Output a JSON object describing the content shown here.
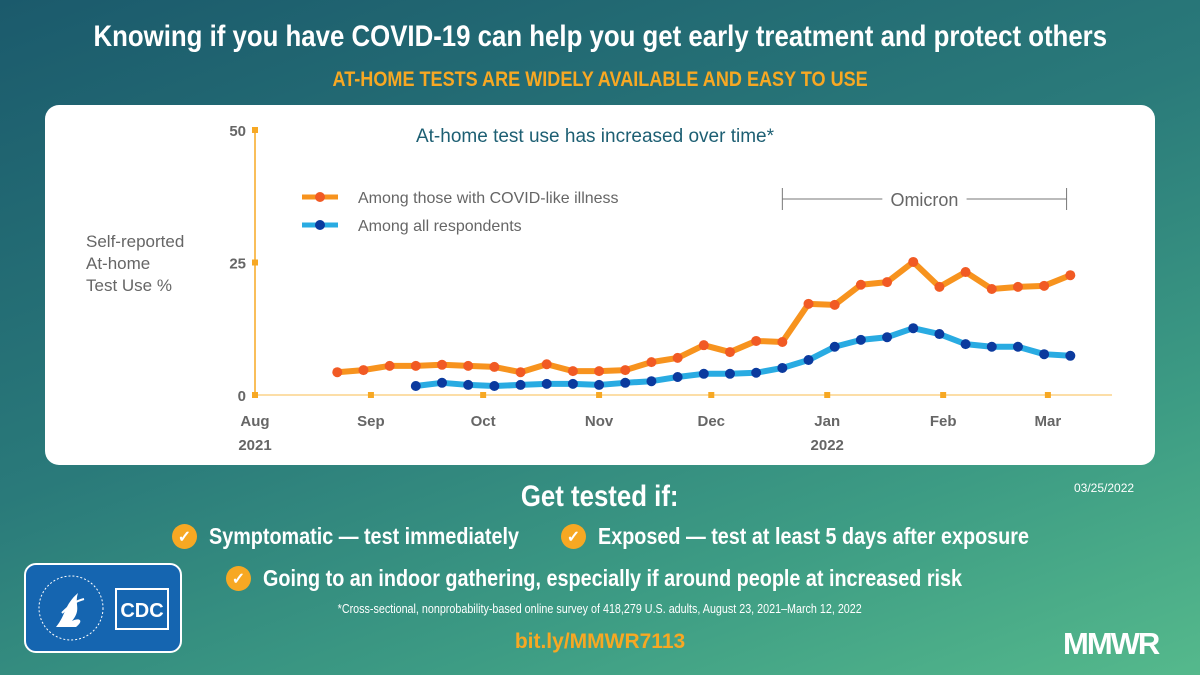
{
  "header": {
    "title": "Knowing if you have COVID-19 can help you get early treatment and protect others",
    "subtitle": "AT-HOME TESTS ARE WIDELY AVAILABLE AND EASY TO USE"
  },
  "chart_data": {
    "type": "line",
    "title": "At-home test use has increased over time*",
    "ylabel": "Self-reported At-home Test Use %",
    "ylabel_lines": [
      "Self-reported",
      "At-home",
      "Test Use %"
    ],
    "ylim": [
      0,
      50
    ],
    "yticks": [
      0,
      25,
      50
    ],
    "xticks": [
      {
        "date": "2021-08-01",
        "label": "Aug",
        "year": "2021"
      },
      {
        "date": "2021-09-01",
        "label": "Sep"
      },
      {
        "date": "2021-10-01",
        "label": "Oct"
      },
      {
        "date": "2021-11-01",
        "label": "Nov"
      },
      {
        "date": "2021-12-01",
        "label": "Dec"
      },
      {
        "date": "2022-01-01",
        "label": "Jan",
        "year": "2022"
      },
      {
        "date": "2022-02-01",
        "label": "Feb"
      },
      {
        "date": "2022-03-01",
        "label": "Mar"
      }
    ],
    "grid": false,
    "legend": "top-left",
    "x": [
      "2021-08-23",
      "2021-08-30",
      "2021-09-06",
      "2021-09-13",
      "2021-09-20",
      "2021-09-27",
      "2021-10-04",
      "2021-10-11",
      "2021-10-18",
      "2021-10-25",
      "2021-11-01",
      "2021-11-08",
      "2021-11-15",
      "2021-11-22",
      "2021-11-29",
      "2021-12-06",
      "2021-12-13",
      "2021-12-20",
      "2021-12-27",
      "2022-01-03",
      "2022-01-10",
      "2022-01-17",
      "2022-01-24",
      "2022-01-31",
      "2022-02-07",
      "2022-02-14",
      "2022-02-21",
      "2022-02-28",
      "2022-03-07"
    ],
    "series": [
      {
        "name": "Among those with COVID-like illness",
        "line_color": "#f7931e",
        "marker_color": "#f15a24",
        "values": [
          4.3,
          4.7,
          5.5,
          5.5,
          5.7,
          5.5,
          5.3,
          4.3,
          5.8,
          4.5,
          4.5,
          4.7,
          6.2,
          7.0,
          9.4,
          8.1,
          10.2,
          10.0,
          17.2,
          17.0,
          20.8,
          21.3,
          25.1,
          20.4,
          23.2,
          20.0,
          20.4,
          20.6,
          22.6
        ]
      },
      {
        "name": "Among all respondents",
        "line_color": "#29abe2",
        "marker_color": "#0b3a9e",
        "values": [
          null,
          null,
          null,
          1.7,
          2.3,
          1.9,
          1.7,
          1.9,
          2.1,
          2.1,
          1.9,
          2.3,
          2.6,
          3.4,
          4.0,
          4.0,
          4.2,
          5.1,
          6.6,
          9.1,
          10.4,
          10.9,
          12.6,
          11.5,
          9.6,
          9.1,
          9.1,
          7.7,
          7.4
        ]
      }
    ],
    "annotation": {
      "label": "Omicron",
      "start": "2021-12-20",
      "end": "2022-03-06"
    },
    "axis_color": "#f7a823"
  },
  "cta": {
    "heading": "Get tested if:",
    "date": "03/25/2022",
    "items": [
      "Symptomatic — test immediately",
      "Exposed — test at least 5 days after exposure",
      "Going to an indoor gathering, especially if around people at increased risk"
    ]
  },
  "footnote": "*Cross-sectional, nonprobability-based online survey of 418,279 U.S. adults, August 23, 2021–March 12, 2022",
  "link": "bit.ly/MMWR7113",
  "logos": {
    "cdc": "CDC",
    "hhs": "Department of Health & Human Services USA",
    "mmwr": "MMWR"
  },
  "colors": {
    "accent": "#f7a823",
    "title_teal": "#1d5f73"
  }
}
